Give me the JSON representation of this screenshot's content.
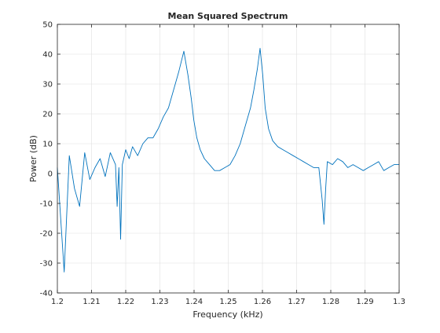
{
  "chart_data": {
    "type": "line",
    "title": "Mean Squared Spectrum",
    "xlabel": "Frequency (kHz)",
    "ylabel": "Power (dB)",
    "xlim": [
      1.2,
      1.3
    ],
    "ylim": [
      -40,
      50
    ],
    "grid": true,
    "x_ticks": [
      1.2,
      1.21,
      1.22,
      1.23,
      1.24,
      1.25,
      1.26,
      1.27,
      1.28,
      1.29,
      1.3
    ],
    "x_tick_labels": [
      "1.2",
      "1.21",
      "1.22",
      "1.23",
      "1.24",
      "1.25",
      "1.26",
      "1.27",
      "1.28",
      "1.29",
      "1.3"
    ],
    "y_ticks": [
      -40,
      -30,
      -20,
      -10,
      0,
      10,
      20,
      30,
      40,
      50
    ],
    "y_tick_labels": [
      "-40",
      "-30",
      "-20",
      "-10",
      "0",
      "10",
      "20",
      "30",
      "40",
      "50"
    ],
    "line_color": "#0072bd",
    "series": [
      {
        "x": [
          1.2,
          1.202,
          1.2035,
          1.205,
          1.2065,
          1.208,
          1.2095,
          1.211,
          1.2125,
          1.214,
          1.2155,
          1.217,
          1.2175,
          1.218,
          1.2185,
          1.219,
          1.22,
          1.221,
          1.222,
          1.2235,
          1.225,
          1.2265,
          1.228,
          1.2295,
          1.231,
          1.2325,
          1.234,
          1.2355,
          1.237,
          1.2382,
          1.2392,
          1.2399,
          1.2408,
          1.2418,
          1.243,
          1.2445,
          1.246,
          1.2475,
          1.249,
          1.2505,
          1.252,
          1.2535,
          1.255,
          1.2565,
          1.2575,
          1.2585,
          1.2593,
          1.2601,
          1.2608,
          1.2618,
          1.263,
          1.2645,
          1.266,
          1.2675,
          1.269,
          1.2705,
          1.272,
          1.2735,
          1.275,
          1.2765,
          1.2775,
          1.278,
          1.2785,
          1.279,
          1.2805,
          1.282,
          1.2835,
          1.285,
          1.2865,
          1.288,
          1.2895,
          1.291,
          1.2925,
          1.294,
          1.2955,
          1.297,
          1.2985,
          1.3
        ],
        "y": [
          2,
          -33,
          6,
          -5,
          -11,
          7,
          -2,
          2,
          5,
          -1,
          7,
          3,
          -11,
          2,
          -22,
          3,
          8,
          5,
          9,
          6,
          10,
          12,
          12,
          15,
          19,
          22,
          28,
          34,
          41,
          33,
          25,
          18,
          12,
          8,
          5,
          3,
          1,
          1,
          2,
          3,
          6,
          10,
          16,
          22,
          28,
          35,
          42,
          33,
          22,
          15,
          11,
          9,
          8,
          7,
          6,
          5,
          4,
          3,
          2,
          2,
          -9,
          -17,
          -5,
          4,
          3,
          5,
          4,
          2,
          3,
          2,
          1,
          2,
          3,
          4,
          1,
          2,
          3,
          3
        ]
      }
    ]
  }
}
